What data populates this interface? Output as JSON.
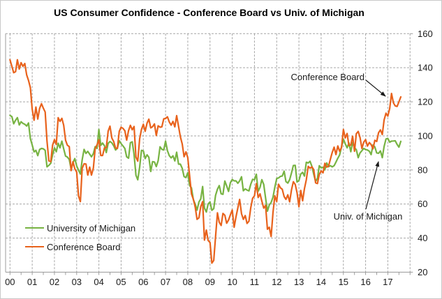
{
  "chart_data": {
    "type": "line",
    "title": "US Consumer Confidence - Conference Board vs Univ. of Michigan",
    "frequency": "monthly",
    "x_start_year": 2000,
    "x_end": "2017-08",
    "x_tick_labels": [
      "00",
      "01",
      "02",
      "03",
      "04",
      "05",
      "06",
      "07",
      "08",
      "09",
      "10",
      "11",
      "12",
      "13",
      "14",
      "15",
      "16",
      "17"
    ],
    "ylim": [
      20,
      160
    ],
    "y_ticks": [
      20,
      40,
      60,
      80,
      100,
      120,
      140,
      160
    ],
    "grid": "dashed gray, yearly vertical and every-20 horizontal",
    "legend_position": "inside bottom-left",
    "axis_color": "#9b9b9b",
    "gridline_color": "#a6a6a6",
    "series": [
      {
        "name": "University of Michigan",
        "color": "#77B342",
        "values": [
          112.0,
          111.3,
          107.1,
          109.2,
          110.7,
          106.4,
          108.3,
          107.3,
          106.8,
          105.8,
          107.6,
          98.4,
          94.7,
          90.6,
          91.5,
          88.4,
          92.0,
          92.6,
          92.4,
          91.5,
          81.8,
          82.7,
          83.9,
          88.8,
          93.0,
          90.7,
          95.7,
          93.0,
          96.9,
          92.4,
          88.1,
          87.6,
          86.1,
          80.6,
          84.2,
          86.7,
          82.4,
          79.9,
          77.6,
          86.0,
          92.1,
          89.7,
          90.9,
          89.3,
          87.7,
          89.6,
          93.7,
          92.6,
          103.8,
          94.4,
          95.8,
          94.2,
          90.2,
          95.6,
          96.7,
          95.9,
          94.2,
          91.7,
          92.8,
          97.1,
          95.5,
          94.1,
          92.6,
          87.7,
          86.9,
          96.0,
          96.5,
          89.1,
          76.9,
          74.2,
          81.6,
          91.5,
          91.2,
          86.7,
          88.9,
          87.4,
          79.1,
          84.9,
          84.7,
          82.0,
          85.4,
          93.6,
          92.1,
          91.7,
          96.9,
          91.3,
          88.4,
          87.1,
          88.3,
          85.3,
          90.4,
          83.4,
          83.4,
          80.9,
          76.1,
          75.5,
          78.4,
          70.8,
          69.5,
          62.6,
          59.8,
          56.4,
          61.2,
          63.0,
          70.3,
          57.6,
          55.3,
          60.1,
          61.2,
          56.3,
          57.3,
          65.1,
          68.7,
          70.8,
          66.0,
          65.7,
          73.5,
          70.6,
          67.4,
          72.5,
          74.4,
          73.6,
          73.6,
          72.2,
          73.6,
          76.0,
          67.8,
          68.9,
          68.2,
          67.7,
          71.6,
          74.5,
          74.2,
          77.5,
          67.5,
          69.8,
          74.3,
          71.5,
          63.7,
          55.8,
          59.4,
          60.9,
          64.1,
          69.9,
          75.0,
          75.3,
          76.2,
          76.4,
          79.3,
          73.2,
          72.3,
          74.3,
          78.3,
          82.6,
          82.7,
          72.9,
          73.8,
          77.6,
          78.6,
          76.4,
          84.5,
          84.1,
          85.1,
          82.1,
          77.5,
          73.2,
          75.1,
          82.5,
          81.2,
          81.6,
          80.0,
          84.1,
          81.9,
          82.5,
          81.8,
          82.5,
          84.6,
          86.9,
          88.8,
          93.6,
          98.1,
          95.4,
          93.0,
          95.9,
          90.7,
          96.1,
          93.1,
          91.9,
          87.2,
          90.0,
          91.3,
          92.6,
          92.0,
          91.7,
          91.0,
          89.0,
          94.7,
          93.5,
          90.0,
          89.8,
          91.2,
          87.2,
          93.8,
          98.2,
          98.5,
          96.3,
          96.9,
          97.0,
          97.1,
          95.0,
          93.4,
          96.8
        ]
      },
      {
        "name": "Conference Board",
        "color": "#E8621C",
        "values": [
          144.7,
          140.8,
          137.1,
          137.7,
          144.7,
          139.2,
          143.0,
          140.8,
          142.5,
          135.8,
          132.6,
          128.3,
          115.7,
          109.2,
          116.9,
          109.9,
          116.1,
          118.9,
          116.3,
          114.0,
          97.0,
          85.3,
          84.9,
          94.6,
          97.8,
          95.0,
          110.7,
          108.5,
          110.3,
          106.3,
          97.4,
          94.5,
          93.7,
          79.6,
          84.9,
          80.7,
          78.8,
          64.8,
          61.4,
          81.0,
          83.6,
          83.5,
          77.0,
          81.7,
          77.0,
          81.1,
          92.5,
          94.8,
          97.7,
          88.5,
          88.5,
          93.0,
          93.1,
          102.8,
          105.7,
          98.7,
          96.7,
          92.9,
          92.6,
          102.7,
          105.1,
          104.4,
          103.0,
          97.5,
          103.1,
          106.2,
          103.6,
          105.5,
          87.5,
          85.2,
          98.3,
          103.8,
          106.8,
          102.7,
          107.5,
          109.8,
          104.7,
          105.4,
          107.0,
          100.2,
          105.9,
          105.1,
          105.3,
          110.0,
          110.2,
          111.2,
          108.2,
          106.3,
          108.5,
          105.3,
          111.9,
          105.6,
          99.5,
          95.2,
          87.8,
          90.6,
          87.3,
          76.4,
          65.9,
          62.8,
          58.1,
          51.0,
          51.9,
          58.5,
          61.4,
          38.8,
          44.7,
          38.6,
          37.4,
          25.3,
          26.9,
          40.8,
          54.8,
          49.3,
          47.4,
          54.5,
          53.4,
          48.7,
          50.6,
          53.6,
          56.5,
          46.4,
          52.3,
          57.7,
          62.7,
          54.3,
          51.0,
          53.2,
          48.6,
          49.9,
          57.8,
          63.4,
          64.8,
          72.0,
          63.8,
          66.0,
          61.7,
          57.6,
          59.2,
          45.2,
          46.4,
          40.9,
          55.2,
          64.8,
          61.5,
          71.6,
          69.5,
          68.7,
          64.4,
          62.7,
          65.4,
          61.3,
          68.4,
          73.1,
          71.5,
          66.7,
          58.4,
          68.0,
          61.9,
          69.0,
          74.3,
          82.1,
          81.0,
          81.8,
          80.2,
          72.4,
          72.0,
          77.5,
          79.4,
          78.3,
          83.9,
          81.7,
          82.2,
          86.4,
          90.3,
          93.4,
          89.0,
          94.1,
          91.0,
          93.1,
          103.8,
          98.8,
          101.4,
          94.3,
          94.6,
          99.8,
          91.0,
          101.3,
          102.6,
          99.1,
          92.6,
          96.3,
          97.8,
          94.0,
          96.1,
          94.9,
          92.4,
          97.4,
          96.7,
          101.8,
          103.5,
          100.8,
          109.4,
          113.3,
          111.6,
          116.1,
          124.9,
          119.4,
          117.6,
          117.3,
          120.0,
          122.9
        ]
      }
    ],
    "annotations": [
      {
        "text": "Conference Board",
        "points_to": "orange line peak ~125 in early 2017"
      },
      {
        "text": "Univ. of Michigan",
        "points_to": "green line ~91 in late 2016"
      }
    ]
  }
}
